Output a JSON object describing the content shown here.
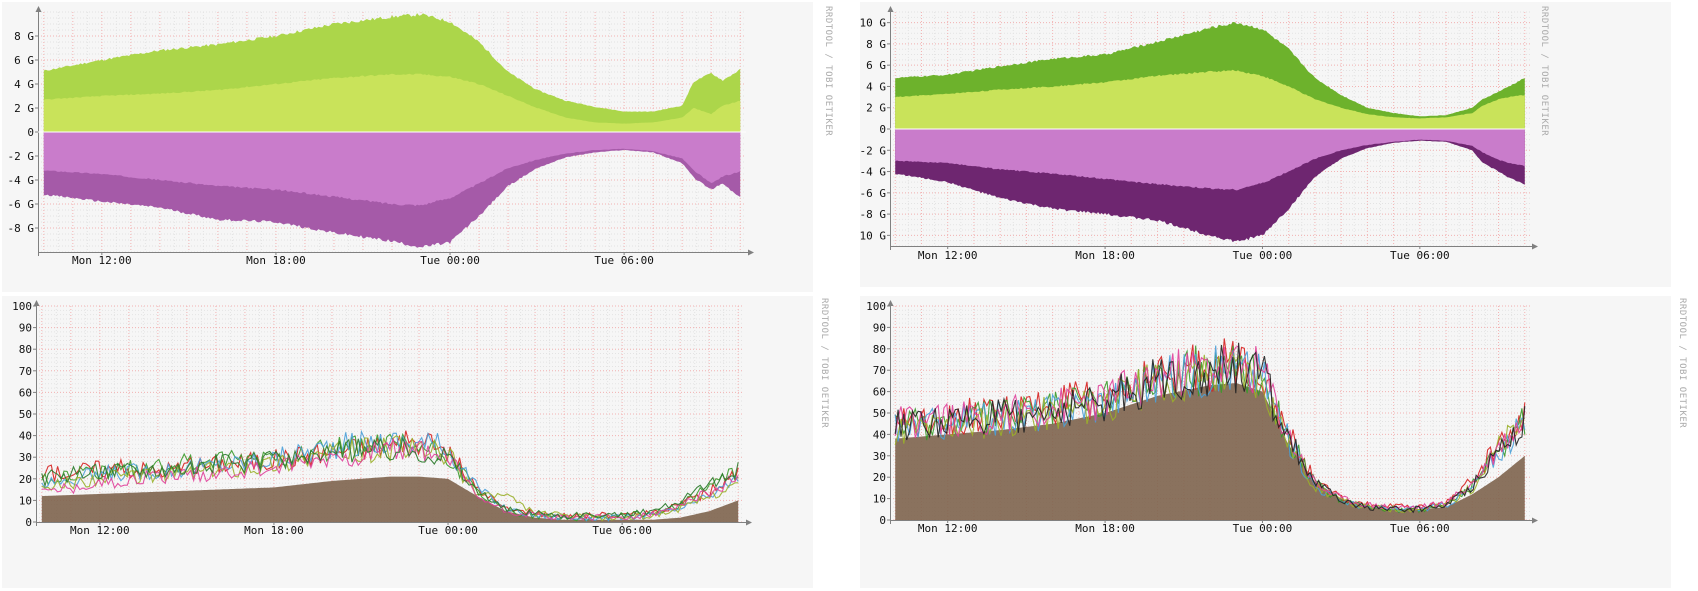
{
  "watermark": "RRDTOOL / TOBI OETIKER",
  "colors": {
    "green_light": "#c9e35a",
    "green_mid": "#acd64a",
    "green_dark": "#6db22c",
    "purple_light": "#c97ccb",
    "purple_mid": "#a55aa8",
    "purple_dark": "#6e2670",
    "brown": "#806650",
    "grid_minor": "#e3e3e3",
    "grid_major": "#f3b3b3",
    "axis": "#808080"
  },
  "chart_data": [
    {
      "type": "area",
      "layout": "split",
      "x_labels": [
        "Mon 12:00",
        "Mon 18:00",
        "Tue 00:00",
        "Tue 06:00"
      ],
      "x_label_hours": [
        12,
        18,
        24,
        30
      ],
      "x_range_hours": [
        9.8,
        34.2
      ],
      "y_tick_labels": [
        "8 G",
        "6 G",
        "4 G",
        "2 G",
        "0",
        "-2 G",
        "-4 G",
        "-6 G",
        "-8 G"
      ],
      "y_tick_values": [
        8,
        6,
        4,
        2,
        0,
        -2,
        -4,
        -6,
        -8
      ],
      "ylim": [
        -10,
        10
      ],
      "hours": [
        10,
        12,
        14,
        16,
        18,
        20,
        22,
        23,
        24,
        25,
        26,
        27,
        28,
        29,
        30,
        31,
        32,
        32.4,
        33,
        33.4,
        34
      ],
      "series": [
        {
          "role": "inbound_lower",
          "color_key": "green_light",
          "values": [
            2.7,
            3.0,
            3.2,
            3.5,
            4.0,
            4.5,
            4.8,
            4.8,
            4.6,
            4.0,
            3.0,
            2.0,
            1.2,
            0.8,
            0.7,
            0.8,
            1.2,
            2.0,
            1.5,
            2.2,
            2.6
          ]
        },
        {
          "role": "inbound_upper",
          "color_key": "green_mid",
          "values": [
            5.1,
            6.0,
            6.8,
            7.3,
            8.0,
            9.0,
            9.6,
            9.8,
            9.2,
            7.5,
            5.0,
            3.5,
            2.6,
            2.1,
            1.7,
            1.7,
            2.2,
            4.2,
            4.9,
            4.3,
            5.2
          ]
        },
        {
          "role": "outbound_lower",
          "color_key": "purple_light",
          "values": [
            -3.2,
            -3.5,
            -4.0,
            -4.5,
            -4.8,
            -5.4,
            -6.0,
            -6.1,
            -5.5,
            -4.3,
            -3.0,
            -2.3,
            -1.8,
            -1.5,
            -1.4,
            -1.6,
            -2.2,
            -3.2,
            -4.3,
            -3.7,
            -3.3
          ]
        },
        {
          "role": "outbound_upper",
          "color_key": "purple_mid",
          "values": [
            -5.2,
            -5.8,
            -6.3,
            -7.3,
            -7.5,
            -8.4,
            -9.1,
            -9.6,
            -9.2,
            -7.0,
            -4.5,
            -3.0,
            -2.1,
            -1.7,
            -1.5,
            -1.7,
            -2.6,
            -3.8,
            -4.8,
            -4.3,
            -5.5
          ]
        }
      ]
    },
    {
      "type": "area",
      "layout": "split",
      "x_labels": [
        "Mon 12:00",
        "Mon 18:00",
        "Tue 00:00",
        "Tue 06:00"
      ],
      "x_label_hours": [
        12,
        18,
        24,
        30
      ],
      "x_range_hours": [
        9.8,
        34.2
      ],
      "y_tick_labels": [
        "10 G",
        "8 G",
        "6 G",
        "4 G",
        "2 G",
        "0",
        "-2 G",
        "-4 G",
        "-6 G",
        "-8 G",
        "-10 G"
      ],
      "y_tick_values": [
        10,
        8,
        6,
        4,
        2,
        0,
        -2,
        -4,
        -6,
        -8,
        -10
      ],
      "ylim": [
        -11,
        11
      ],
      "hours": [
        10,
        12,
        14,
        16,
        18,
        20,
        22,
        23,
        24,
        25,
        26,
        27,
        28,
        29,
        30,
        31,
        32,
        32.4,
        33,
        33.4,
        34
      ],
      "series": [
        {
          "role": "inbound_lower",
          "color_key": "green_light",
          "values": [
            3.0,
            3.3,
            3.7,
            4.0,
            4.4,
            5.0,
            5.4,
            5.5,
            5.0,
            4.0,
            2.8,
            2.0,
            1.4,
            1.1,
            1.0,
            1.1,
            1.5,
            2.2,
            2.8,
            3.0,
            3.2
          ]
        },
        {
          "role": "inbound_upper",
          "color_key": "green_dark",
          "values": [
            4.8,
            5.1,
            5.9,
            6.6,
            7.0,
            8.2,
            9.5,
            10.0,
            9.4,
            7.5,
            4.8,
            3.2,
            2.0,
            1.5,
            1.2,
            1.3,
            2.0,
            2.8,
            3.5,
            4.0,
            4.8
          ]
        },
        {
          "role": "outbound_lower",
          "color_key": "purple_light",
          "values": [
            -3.0,
            -3.2,
            -3.8,
            -4.2,
            -4.7,
            -5.2,
            -5.6,
            -5.7,
            -5.1,
            -4.0,
            -2.8,
            -2.0,
            -1.5,
            -1.2,
            -1.0,
            -1.1,
            -1.6,
            -2.2,
            -2.9,
            -3.2,
            -3.5
          ]
        },
        {
          "role": "outbound_upper",
          "color_key": "purple_dark",
          "values": [
            -4.2,
            -5.0,
            -6.5,
            -7.5,
            -8.0,
            -8.6,
            -10.0,
            -10.6,
            -10.0,
            -7.5,
            -4.5,
            -2.8,
            -1.8,
            -1.3,
            -1.1,
            -1.2,
            -2.0,
            -3.2,
            -4.0,
            -4.6,
            -5.2
          ]
        }
      ]
    },
    {
      "type": "line",
      "layout": "multi",
      "x_labels": [
        "Mon 12:00",
        "Mon 18:00",
        "Tue 00:00",
        "Tue 06:00"
      ],
      "x_label_hours": [
        12,
        18,
        24,
        30
      ],
      "x_range_hours": [
        9.8,
        34.2
      ],
      "y_tick_labels": [
        "100",
        "90",
        "80",
        "70",
        "60",
        "50",
        "40",
        "30",
        "20",
        "10",
        "0"
      ],
      "y_tick_values": [
        100,
        90,
        80,
        70,
        60,
        50,
        40,
        30,
        20,
        10,
        0
      ],
      "ylim": [
        0,
        100
      ],
      "hours": [
        10,
        12,
        14,
        16,
        18,
        20,
        22,
        23,
        24,
        25,
        26,
        27,
        28,
        29,
        30,
        31,
        32,
        33,
        34
      ],
      "area_values": [
        12,
        13,
        14,
        15,
        16,
        19,
        21,
        21,
        20,
        12,
        5,
        2,
        1,
        1,
        1,
        1,
        2,
        5,
        10
      ],
      "series": [
        {
          "color": "#d62020",
          "values": [
            22,
            25,
            24,
            27,
            29,
            33,
            36,
            36,
            33,
            15,
            6,
            4,
            3,
            3,
            3,
            4,
            8,
            14,
            22
          ]
        },
        {
          "color": "#3a9a2a",
          "values": [
            20,
            23,
            26,
            28,
            30,
            34,
            35,
            35,
            30,
            14,
            5,
            3,
            2,
            2,
            3,
            4,
            8,
            16,
            24
          ]
        },
        {
          "color": "#4aa0d8",
          "values": [
            18,
            22,
            24,
            26,
            29,
            35,
            37,
            37,
            34,
            16,
            6,
            3,
            2,
            2,
            2,
            3,
            6,
            12,
            20
          ]
        },
        {
          "color": "#9ab02a",
          "values": [
            16,
            20,
            22,
            24,
            27,
            32,
            34,
            34,
            31,
            13,
            12,
            4,
            3,
            2,
            2,
            3,
            6,
            12,
            18
          ]
        },
        {
          "color": "#e0409a",
          "values": [
            14,
            18,
            21,
            23,
            25,
            30,
            33,
            33,
            30,
            12,
            5,
            3,
            2,
            2,
            2,
            3,
            8,
            14,
            20
          ]
        },
        {
          "color": "#2a7a2a",
          "values": [
            20,
            24,
            25,
            27,
            28,
            32,
            34,
            34,
            31,
            14,
            6,
            4,
            3,
            3,
            3,
            5,
            10,
            17,
            24
          ]
        }
      ]
    },
    {
      "type": "line",
      "layout": "multi",
      "x_labels": [
        "Mon 12:00",
        "Mon 18:00",
        "Tue 00:00",
        "Tue 06:00"
      ],
      "x_label_hours": [
        12,
        18,
        24,
        30
      ],
      "x_range_hours": [
        9.8,
        34.2
      ],
      "y_tick_labels": [
        "100",
        "90",
        "80",
        "70",
        "60",
        "50",
        "40",
        "30",
        "20",
        "10",
        "0"
      ],
      "y_tick_values": [
        100,
        90,
        80,
        70,
        60,
        50,
        40,
        30,
        20,
        10,
        0
      ],
      "ylim": [
        0,
        100
      ],
      "hours": [
        10,
        12,
        14,
        16,
        18,
        20,
        22,
        23,
        24,
        25,
        26,
        27,
        28,
        29,
        30,
        31,
        32,
        33,
        34
      ],
      "area_values": [
        38,
        40,
        42,
        45,
        50,
        58,
        63,
        64,
        60,
        35,
        18,
        10,
        6,
        5,
        5,
        6,
        12,
        20,
        30
      ],
      "series": [
        {
          "color": "#d62020",
          "values": [
            46,
            48,
            50,
            53,
            58,
            67,
            72,
            73,
            70,
            40,
            18,
            10,
            7,
            6,
            6,
            8,
            18,
            35,
            48
          ]
        },
        {
          "color": "#3a9a2a",
          "values": [
            44,
            46,
            49,
            52,
            57,
            66,
            71,
            72,
            69,
            38,
            17,
            9,
            6,
            5,
            5,
            7,
            16,
            33,
            46
          ]
        },
        {
          "color": "#4aa0d8",
          "values": [
            43,
            45,
            48,
            51,
            56,
            65,
            70,
            71,
            68,
            37,
            16,
            9,
            6,
            5,
            5,
            7,
            15,
            32,
            45
          ]
        },
        {
          "color": "#9ab02a",
          "values": [
            42,
            44,
            47,
            50,
            55,
            64,
            69,
            70,
            67,
            36,
            16,
            9,
            6,
            5,
            5,
            7,
            15,
            34,
            47
          ]
        },
        {
          "color": "#e0409a",
          "values": [
            45,
            47,
            49,
            52,
            57,
            66,
            71,
            72,
            69,
            39,
            17,
            10,
            7,
            6,
            6,
            8,
            17,
            34,
            47
          ]
        },
        {
          "color": "#222222",
          "values": [
            44,
            46,
            48,
            51,
            56,
            65,
            70,
            71,
            68,
            38,
            17,
            9,
            6,
            5,
            5,
            7,
            16,
            33,
            46
          ]
        }
      ]
    }
  ]
}
